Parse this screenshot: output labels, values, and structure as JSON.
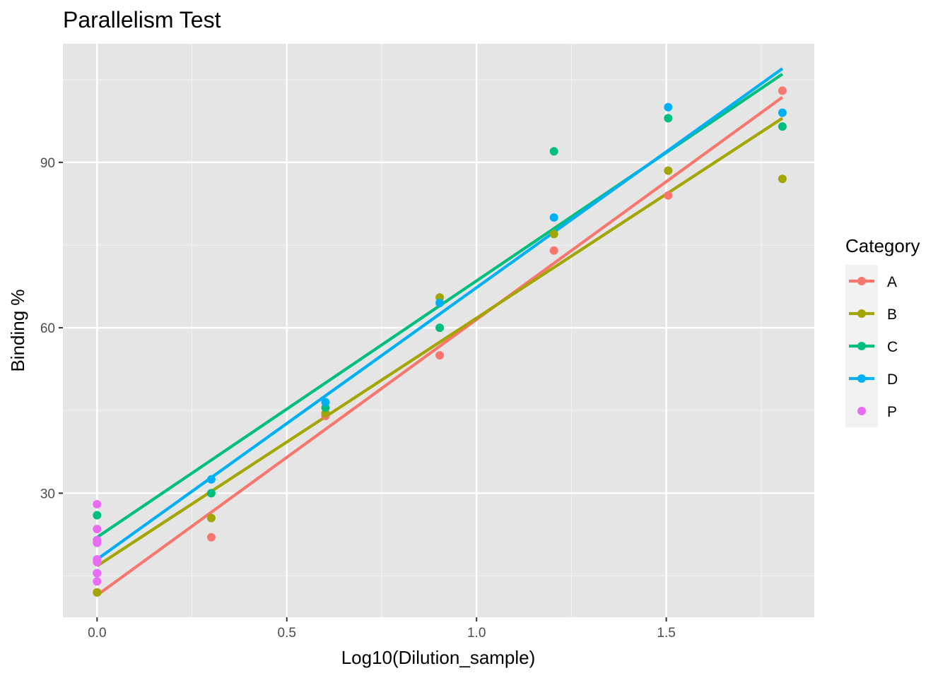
{
  "chart_data": {
    "type": "scatter",
    "title": "Parallelism Test",
    "xlabel": "Log10(Dilution_sample)",
    "ylabel": "Binding %",
    "xlim": [
      -0.09,
      1.89
    ],
    "ylim": [
      7.5,
      111.5
    ],
    "x_ticks": [
      {
        "value": 0.0,
        "label": "0.0"
      },
      {
        "value": 0.5,
        "label": "0.5"
      },
      {
        "value": 1.0,
        "label": "1.0"
      },
      {
        "value": 1.5,
        "label": "1.5"
      }
    ],
    "y_ticks": [
      {
        "value": 30,
        "label": "30"
      },
      {
        "value": 60,
        "label": "60"
      },
      {
        "value": 90,
        "label": "90"
      }
    ],
    "panel_background": "#e5e5e5",
    "grid": true,
    "legend": {
      "title": "Category",
      "position": "right",
      "entries": [
        {
          "key": "A",
          "label": "A",
          "line": true
        },
        {
          "key": "B",
          "label": "B",
          "line": true
        },
        {
          "key": "C",
          "label": "C",
          "line": true
        },
        {
          "key": "D",
          "label": "D",
          "line": true
        },
        {
          "key": "P",
          "label": "P",
          "line": false
        }
      ]
    },
    "series": [
      {
        "name": "A",
        "color": "#f8766d",
        "points": [
          [
            0,
            12
          ],
          [
            0.301,
            22
          ],
          [
            0.602,
            44
          ],
          [
            0.903,
            55
          ],
          [
            1.204,
            74
          ],
          [
            1.505,
            84
          ],
          [
            1.806,
            103
          ]
        ],
        "fit": {
          "x": [
            0,
            1.806
          ],
          "y": [
            11.5,
            101.8
          ]
        }
      },
      {
        "name": "B",
        "color": "#a3a500",
        "points": [
          [
            0,
            12
          ],
          [
            0.301,
            25.5
          ],
          [
            0.602,
            44.5
          ],
          [
            0.903,
            65.5
          ],
          [
            1.204,
            77
          ],
          [
            1.505,
            88.5
          ],
          [
            1.806,
            87
          ]
        ],
        "fit": {
          "x": [
            0,
            1.806
          ],
          "y": [
            16.8,
            98
          ]
        }
      },
      {
        "name": "C",
        "color": "#00bf7d",
        "points": [
          [
            0,
            26
          ],
          [
            0.301,
            30
          ],
          [
            0.602,
            45.5
          ],
          [
            0.903,
            60
          ],
          [
            1.204,
            92
          ],
          [
            1.505,
            98
          ],
          [
            1.806,
            96.5
          ]
        ],
        "fit": {
          "x": [
            0,
            1.806
          ],
          "y": [
            22,
            106
          ]
        }
      },
      {
        "name": "D",
        "color": "#00b0f6",
        "points": [
          [
            0,
            15.5
          ],
          [
            0.301,
            32.5
          ],
          [
            0.602,
            46.5
          ],
          [
            0.903,
            64.5
          ],
          [
            1.204,
            80
          ],
          [
            1.505,
            100
          ],
          [
            1.806,
            99
          ]
        ],
        "fit": {
          "x": [
            0,
            1.806
          ],
          "y": [
            18,
            107
          ]
        }
      },
      {
        "name": "P",
        "color": "#e76bf3",
        "points": [
          [
            0,
            28
          ],
          [
            0,
            23.5
          ],
          [
            0,
            21.5
          ],
          [
            0,
            21
          ],
          [
            0,
            18
          ],
          [
            0,
            17.5
          ],
          [
            0,
            15.5
          ],
          [
            0,
            14
          ]
        ]
      }
    ]
  }
}
